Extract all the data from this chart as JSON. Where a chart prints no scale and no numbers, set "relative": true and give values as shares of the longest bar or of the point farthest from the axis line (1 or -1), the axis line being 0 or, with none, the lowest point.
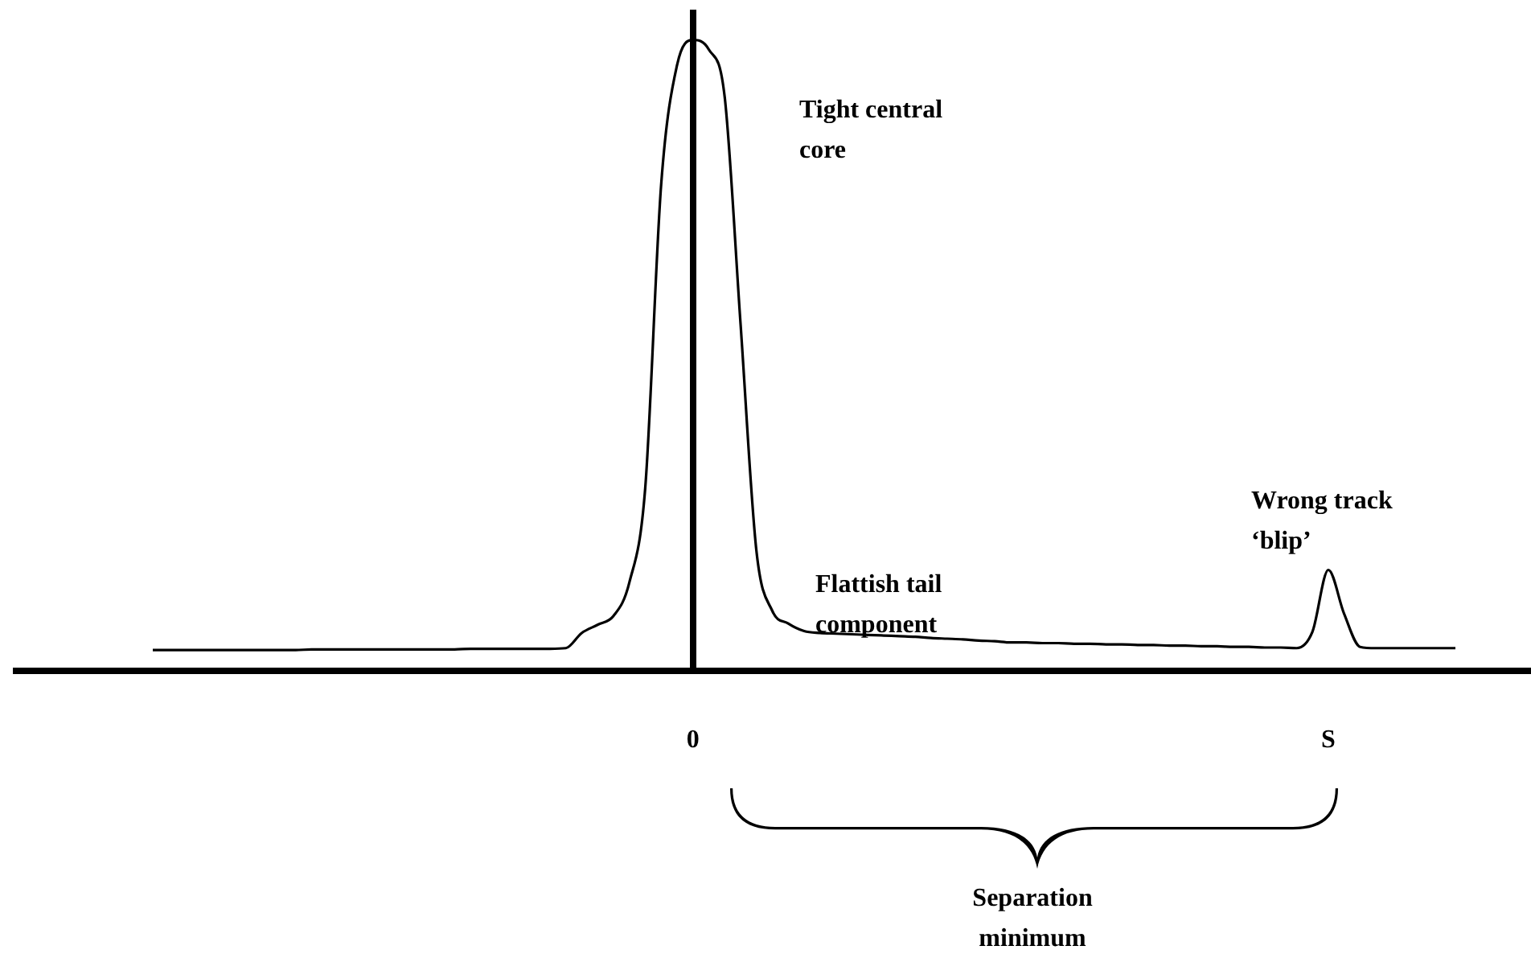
{
  "chart_data": {
    "type": "line",
    "relative": true,
    "categories": [
      null,
      null,
      null,
      null,
      null,
      null,
      null,
      null,
      null,
      null,
      null,
      null,
      null,
      null,
      null,
      null,
      null,
      null,
      null,
      null,
      null,
      null,
      null,
      null,
      null,
      null,
      null,
      null,
      null,
      null,
      null,
      null,
      null,
      null,
      "0",
      null,
      null,
      null,
      null,
      null,
      null,
      null,
      null,
      null,
      null,
      null,
      null,
      null,
      null,
      null,
      null,
      null,
      null,
      null,
      null,
      null,
      null,
      null,
      null,
      null,
      null,
      null,
      null,
      null,
      null,
      null,
      null,
      null,
      null,
      null,
      null,
      null,
      null,
      null,
      "S",
      null,
      null,
      null,
      null,
      null,
      null,
      null,
      null
    ],
    "series": [
      {
        "color": "#000000",
        "values": [
          0.033,
          0.033,
          0.033,
          0.033,
          0.033,
          0.033,
          0.033,
          0.033,
          0.033,
          0.033,
          0.034,
          0.034,
          0.034,
          0.034,
          0.034,
          0.034,
          0.034,
          0.034,
          0.034,
          0.034,
          0.035,
          0.035,
          0.035,
          0.035,
          0.035,
          0.035,
          0.036,
          0.06,
          0.073,
          0.087,
          0.14,
          0.29,
          0.77,
          0.96,
          1.0,
          0.985,
          0.91,
          0.55,
          0.19,
          0.095,
          0.075,
          0.063,
          0.06,
          0.059,
          0.058,
          0.057,
          0.056,
          0.055,
          0.054,
          0.052,
          0.051,
          0.05,
          0.048,
          0.047,
          0.045,
          0.045,
          0.044,
          0.044,
          0.043,
          0.043,
          0.042,
          0.042,
          0.041,
          0.041,
          0.04,
          0.04,
          0.039,
          0.039,
          0.038,
          0.038,
          0.037,
          0.037,
          0.036,
          0.062,
          0.16,
          0.09,
          0.038,
          0.036,
          0.036,
          0.036,
          0.036,
          0.036,
          0.036
        ]
      }
    ],
    "annotations": [
      "Tight central core",
      "Flattish tail component",
      "Wrong track ‘blip’",
      "Separation minimum"
    ],
    "grid": false,
    "legend": false,
    "tick_labels": "x",
    "marker": "none"
  }
}
